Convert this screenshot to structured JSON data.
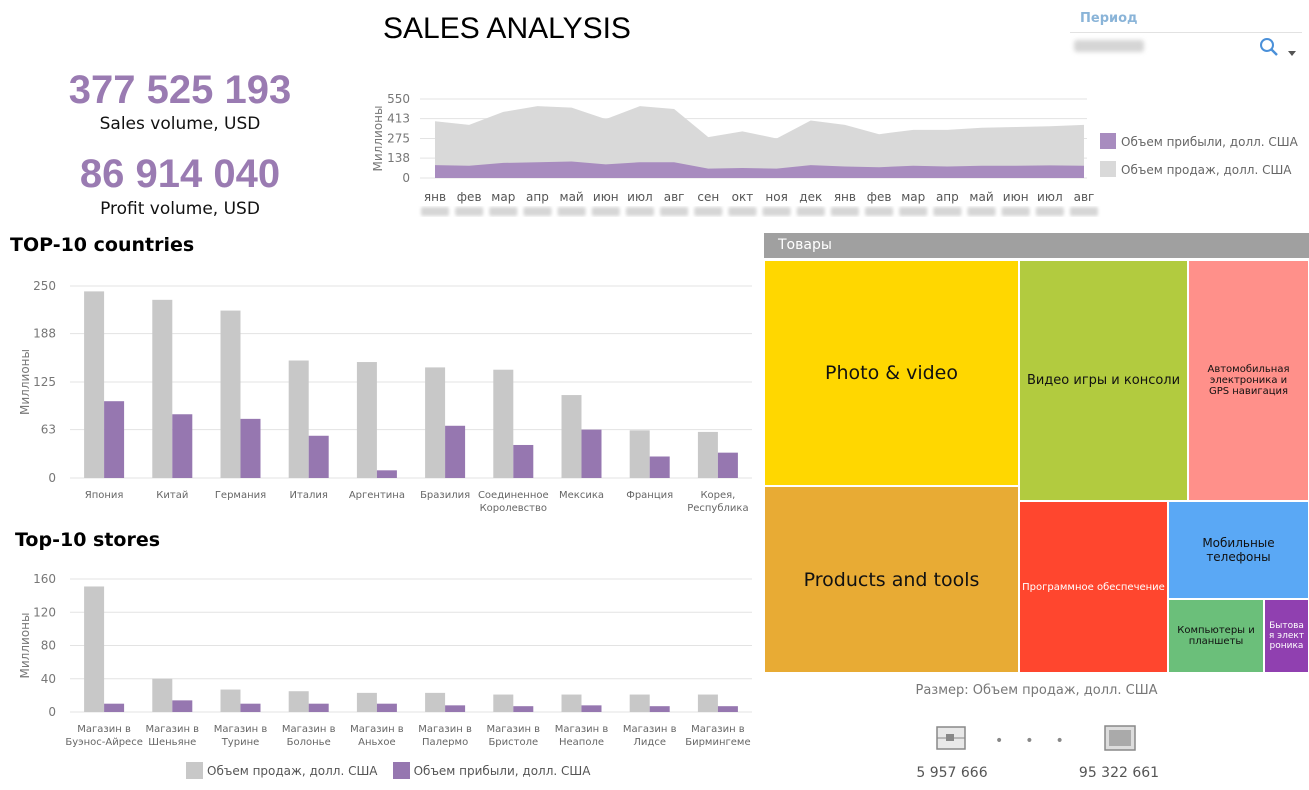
{
  "title": "SALES ANALYSIS",
  "kpis": {
    "sales_value": "377 525 193",
    "sales_label": "Sales volume, USD",
    "profit_value": "86 914 040",
    "profit_label": "Profit volume, USD"
  },
  "filter": {
    "label": "Период"
  },
  "colors": {
    "sales": "#c8c8c8",
    "profit": "#9677b0",
    "area_sales": "#d9d9d9",
    "area_profit": "#a88cbf",
    "kpi": "#9a7bb2"
  },
  "icons": [
    "search-icon",
    "dropdown-icon",
    "zoom-out-icon",
    "zoom-in-icon"
  ],
  "chart_data": [
    {
      "id": "monthly",
      "type": "area",
      "ylabel": "Миллионы",
      "yticks": [
        0,
        138,
        275,
        413,
        550
      ],
      "ylim": [
        0,
        550
      ],
      "categories": [
        "янв",
        "фев",
        "мар",
        "апр",
        "май",
        "июн",
        "июл",
        "авг",
        "сен",
        "окт",
        "ноя",
        "дек",
        "янв",
        "фев",
        "мар",
        "апр",
        "май",
        "июн",
        "июл",
        "авг"
      ],
      "series": [
        {
          "name": "Объем продаж, долл. США",
          "values": [
            395,
            370,
            460,
            500,
            490,
            410,
            500,
            480,
            285,
            325,
            275,
            400,
            370,
            305,
            335,
            335,
            350,
            355,
            360,
            370
          ]
        },
        {
          "name": "Объем прибыли, долл. США",
          "values": [
            90,
            85,
            105,
            110,
            115,
            95,
            110,
            110,
            65,
            70,
            65,
            90,
            80,
            75,
            85,
            80,
            85,
            85,
            88,
            85
          ]
        }
      ],
      "legend": "right"
    },
    {
      "id": "countries",
      "type": "bar",
      "title": "TOP-10 countries",
      "ylabel": "Миллионы",
      "yticks": [
        0,
        63,
        125,
        188,
        250
      ],
      "ylim": [
        0,
        250
      ],
      "categories": [
        "Япония",
        "Китай",
        "Германия",
        "Италия",
        "Аргентина",
        "Бразилия",
        "Соединенное Королевство",
        "Мексика",
        "Франция",
        "Корея, Республика"
      ],
      "series": [
        {
          "name": "Объем продаж, долл. США",
          "values": [
            243,
            232,
            218,
            153,
            151,
            144,
            141,
            108,
            62,
            60
          ]
        },
        {
          "name": "Объем прибыли, долл. США",
          "values": [
            100,
            83,
            77,
            55,
            10,
            68,
            43,
            63,
            28,
            33
          ]
        }
      ]
    },
    {
      "id": "stores",
      "type": "bar",
      "title": "Top-10 stores",
      "ylabel": "Миллионы",
      "yticks": [
        0,
        40,
        80,
        120,
        160
      ],
      "ylim": [
        0,
        160
      ],
      "categories": [
        "Магазин в Буэнос-Айресе",
        "Магазин в Шеньяне",
        "Магазин в Турине",
        "Магазин в Болонье",
        "Магазин в Аньхое",
        "Магазин в Палермо",
        "Магазин в Бристоле",
        "Магазин в Неаполе",
        "Магазин в Лидсе",
        "Магазин в Бирмингеме"
      ],
      "series": [
        {
          "name": "Объем продаж, долл. США",
          "values": [
            151,
            40,
            27,
            25,
            23,
            23,
            21,
            21,
            21,
            21
          ]
        },
        {
          "name": "Объем прибыли, долл. США",
          "values": [
            10,
            14,
            10,
            10,
            10,
            8,
            7,
            8,
            7,
            7
          ]
        }
      ],
      "legend": "bottom"
    },
    {
      "id": "products",
      "type": "treemap",
      "title": "Товары",
      "size_label": "Размер: Объем продаж, долл. США",
      "range_min": "5 957 666",
      "range_max": "95 322 661",
      "items": [
        {
          "label": "Photo & video",
          "color": "#ffd700"
        },
        {
          "label": "Products and tools",
          "color": "#e8ab34"
        },
        {
          "label": "Видео игры и консоли",
          "color": "#b2cb3f"
        },
        {
          "label": "Автомобильная электроника и GPS навигация",
          "color": "#ff908a"
        },
        {
          "label": "Программное обеспечение",
          "color": "#ff462e"
        },
        {
          "label": "Мобильные телефоны",
          "color": "#5aa8f5"
        },
        {
          "label": "Компьютеры и планшеты",
          "color": "#6bbf7a"
        },
        {
          "label": "Бытовая электроника",
          "color": "#9040b0"
        }
      ]
    }
  ]
}
